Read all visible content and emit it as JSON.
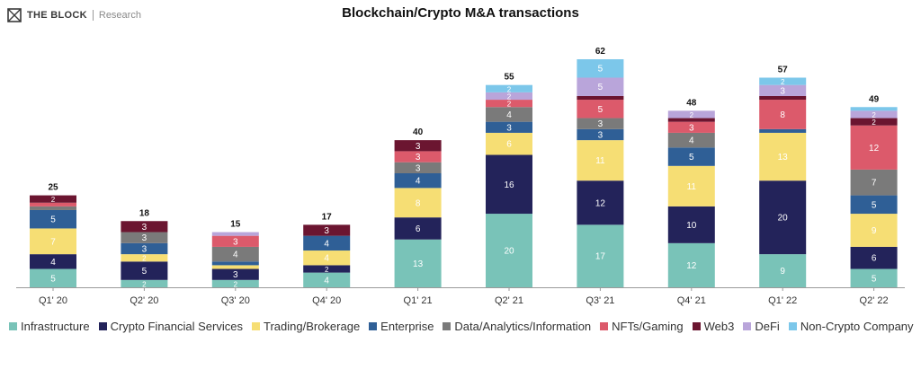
{
  "brand": {
    "name": "THE BLOCK",
    "sub": "Research"
  },
  "chart_data": {
    "type": "bar",
    "stacked": true,
    "title": "Blockchain/Crypto M&A transactions",
    "xlabel": "",
    "ylabel": "",
    "ylim": [
      0,
      62
    ],
    "grid": false,
    "legend_position": "bottom",
    "categories": [
      "Q1' 20",
      "Q2' 20",
      "Q3' 20",
      "Q4' 20",
      "Q1' 21",
      "Q2' 21",
      "Q3' 21",
      "Q4' 21",
      "Q1' 22",
      "Q2' 22"
    ],
    "totals": [
      25,
      18,
      15,
      17,
      40,
      55,
      62,
      48,
      57,
      49
    ],
    "series": [
      {
        "name": "Infrastructure",
        "color": "#79c3b8",
        "values": [
          5,
          2,
          2,
          4,
          13,
          20,
          17,
          12,
          9,
          5
        ]
      },
      {
        "name": "Crypto Financial Services",
        "color": "#23235a",
        "values": [
          4,
          5,
          3,
          2,
          6,
          16,
          12,
          10,
          20,
          6
        ]
      },
      {
        "name": "Trading/Brokerage",
        "color": "#f6de74",
        "values": [
          7,
          2,
          1,
          4,
          8,
          6,
          11,
          11,
          13,
          9
        ]
      },
      {
        "name": "Enterprise",
        "color": "#2f5f96",
        "values": [
          5,
          3,
          1,
          4,
          4,
          3,
          3,
          5,
          1,
          5
        ]
      },
      {
        "name": "Data/Analytics/Information",
        "color": "#7a7a7a",
        "values": [
          1,
          3,
          4,
          0,
          3,
          4,
          3,
          4,
          0,
          7
        ]
      },
      {
        "name": "NFTs/Gaming",
        "color": "#dc5a6b",
        "values": [
          1,
          0,
          3,
          0,
          3,
          2,
          5,
          3,
          8,
          12
        ]
      },
      {
        "name": "Web3",
        "color": "#6b1530",
        "values": [
          2,
          3,
          0,
          3,
          3,
          0,
          1,
          1,
          1,
          2
        ]
      },
      {
        "name": "DeFi",
        "color": "#b9a5da",
        "values": [
          0,
          0,
          1,
          0,
          0,
          2,
          5,
          2,
          3,
          2
        ]
      },
      {
        "name": "Non-Crypto Company",
        "color": "#7cc7ea",
        "values": [
          0,
          0,
          0,
          0,
          0,
          2,
          5,
          0,
          2,
          1
        ]
      }
    ]
  }
}
